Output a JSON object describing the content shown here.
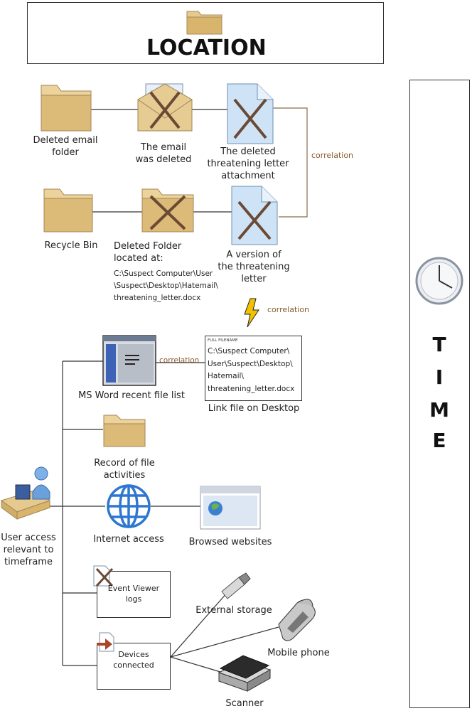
{
  "header": {
    "title": "LOCATION"
  },
  "time_panel": {
    "letters": [
      "T",
      "I",
      "M",
      "E"
    ]
  },
  "labels": {
    "deleted_email_folder": [
      "Deleted email",
      "folder"
    ],
    "email_deleted": [
      "The email",
      "was deleted"
    ],
    "deleted_attachment": [
      "The deleted",
      "threatening letter",
      "attachment"
    ],
    "recycle_bin": "Recycle Bin",
    "deleted_folder": [
      "Deleted Folder",
      "located at:"
    ],
    "deleted_folder_path": [
      "C:\\Suspect Computer\\User",
      "\\Suspect\\Desktop\\Hatemail\\",
      "threatening_letter.docx"
    ],
    "version_letter": [
      "A version of",
      "the threatening",
      "letter"
    ],
    "ms_word": "MS Word recent file list",
    "link_file_header": "FULL FILENAME",
    "link_file_path": [
      "C:\\Suspect Computer\\",
      "User\\Suspect\\Desktop\\",
      "Hatemail\\",
      "threatening_letter.docx"
    ],
    "link_file": "Link file on Desktop",
    "file_activities": [
      "Record of file",
      "activities"
    ],
    "user_access": [
      "User access",
      "relevant to",
      "timeframe"
    ],
    "internet_access": "Internet access",
    "browsed_websites": "Browsed websites",
    "event_viewer": [
      "Event Viewer",
      "logs"
    ],
    "devices_connected": [
      "Devices",
      "connected"
    ],
    "external_storage": "External storage",
    "mobile_phone": "Mobile phone",
    "scanner": "Scanner"
  },
  "correlation_labels": [
    "correlation",
    "correlation",
    "correlation"
  ]
}
